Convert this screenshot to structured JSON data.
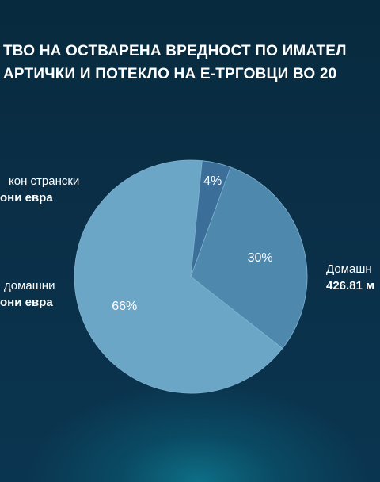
{
  "title_lines": [
    "ТВО НА ОСТВАРЕНА ВРЕДНОСТ ПО ИМАТЕЛ",
    "АРТИЧКИ И ПОТЕКЛО НА Е-ТРГОВЦИ ВО 20"
  ],
  "labels": {
    "foreign": {
      "name": "кон странски",
      "value": "они евра"
    },
    "domestic_small": {
      "name": "домашни",
      "value": "они евра"
    },
    "domestic": {
      "name": "Домашн",
      "value": "426.81 м"
    }
  },
  "colors": {
    "slice_large": "#6ca6c6",
    "slice_medium": "#4f88ad",
    "slice_small": "#3b6e98"
  },
  "chart_data": {
    "type": "pie",
    "slices": [
      {
        "label": "30%",
        "value": 30,
        "color": "#4f88ad"
      },
      {
        "label": "66%",
        "value": 66,
        "color": "#6ca6c6"
      },
      {
        "label": "4%",
        "value": 4,
        "color": "#3b6e98"
      }
    ]
  }
}
